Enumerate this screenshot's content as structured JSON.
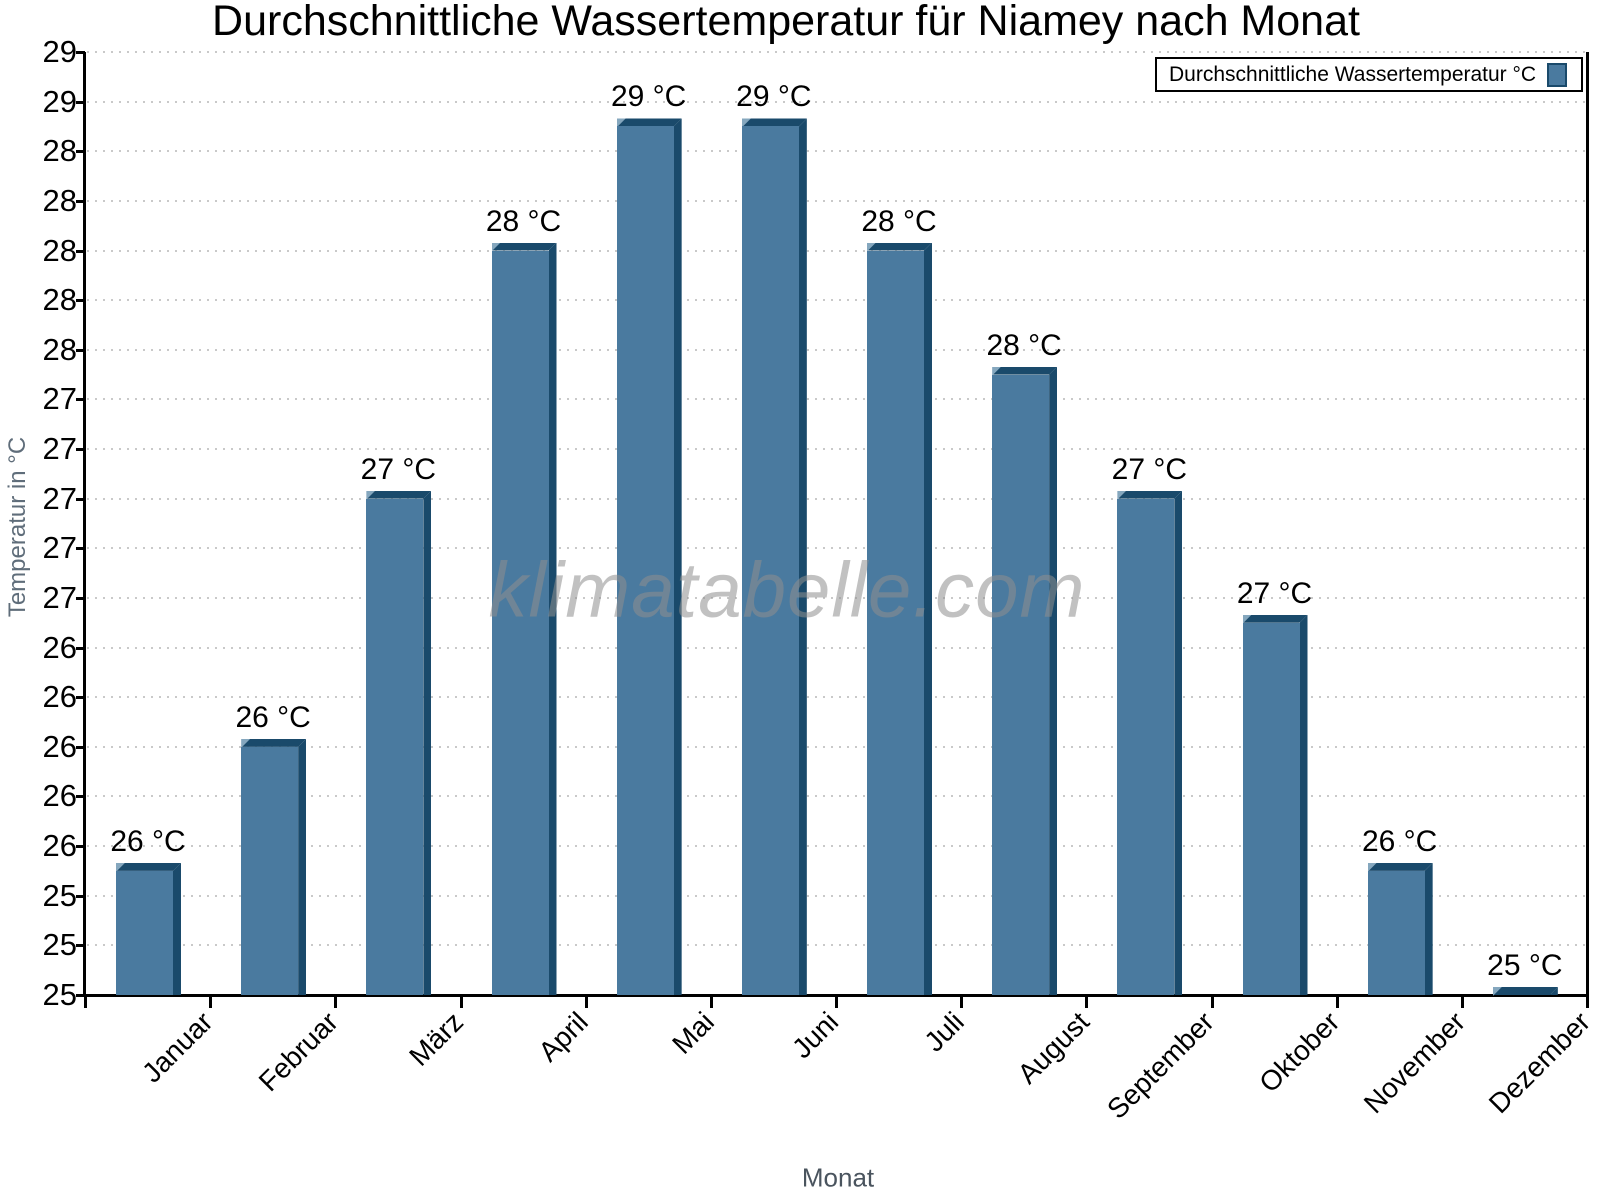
{
  "chart_data": {
    "type": "bar",
    "title": "Durchschnittliche Wassertemperatur für Niamey nach Monat",
    "xlabel": "Monat",
    "ylabel": "Temperatur in °C",
    "legend_label": "Durchschnittliche Wassertemperatur °C",
    "legend_position": "top-right",
    "watermark": "klimatabelle.com",
    "grid": "dotted-horizontal",
    "categories": [
      "Januar",
      "Februar",
      "März",
      "April",
      "Mai",
      "Juni",
      "Juli",
      "August",
      "September",
      "Oktober",
      "November",
      "Dezember"
    ],
    "values": [
      25.5,
      26.0,
      27.0,
      28.0,
      28.5,
      28.5,
      28.0,
      27.5,
      27.0,
      26.5,
      25.5,
      25.0
    ],
    "bar_labels": [
      "26 °C",
      "26 °C",
      "27 °C",
      "28 °C",
      "29 °C",
      "29 °C",
      "28 °C",
      "28 °C",
      "27 °C",
      "27 °C",
      "26 °C",
      "25 °C"
    ],
    "ylim": [
      25.0,
      28.8
    ],
    "ytick_step": 0.2,
    "ytick_labels_top_to_bottom": [
      "29",
      "29",
      "28",
      "28",
      "28",
      "28",
      "28",
      "27",
      "27",
      "27",
      "27",
      "27",
      "26",
      "26",
      "26",
      "26",
      "26",
      "25",
      "25",
      "25"
    ],
    "colors": {
      "bar_face": "#4A7A9F",
      "bar_shade": "#1A4A6B",
      "bar_highlight": "#85A7BE",
      "gridline": "#C9C9C9",
      "axis": "#000000",
      "axis_title": "#5F6D7A",
      "x_title": "#4A545E",
      "watermark": "#8F8F8F",
      "label": "#000000"
    }
  }
}
